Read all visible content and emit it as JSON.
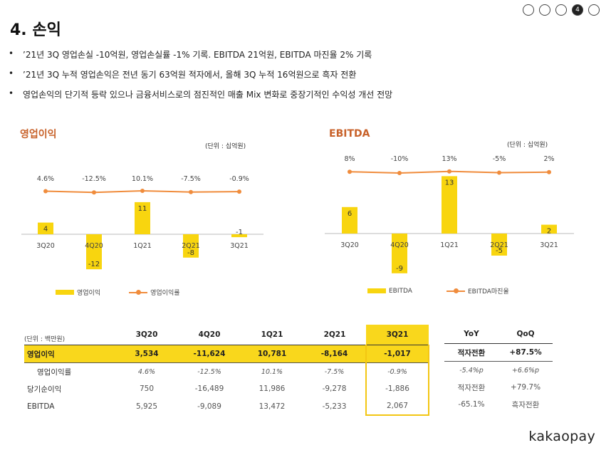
{
  "page": {
    "title": "4. 손익",
    "page_indicator": {
      "total": 5,
      "current": 4,
      "current_label": "4"
    }
  },
  "bullets": [
    "’21년 3Q 영업손실 -10억원, 영업손실률 -1% 기록. EBITDA 21억원, EBITDA 마진율 2% 기록",
    "’21년 3Q 누적 영업손익은 전년 동기 63억원 적자에서, 올해 3Q 누적 16억원으로 흑자 전환",
    "영업손익의 단기적 등락 있으나 금융서비스로의 점진적인 매출 Mix 변화로 중장기적인 수익성 개선 전망"
  ],
  "bullet_mark": "•",
  "colors": {
    "bar": "#f8d50f",
    "line": "#f08c3c",
    "title_left": "#c8622a",
    "title_right": "#c8622a",
    "highlight": "#f9d71c"
  },
  "chart_data": [
    {
      "type": "bar",
      "title": "영업이익",
      "unit": "(단위 : 십억원)",
      "categories": [
        "3Q20",
        "4Q20",
        "1Q21",
        "2Q21",
        "3Q21"
      ],
      "series": [
        {
          "name": "영업이익",
          "type": "bar",
          "values": [
            4,
            -12,
            11,
            -8,
            -1
          ],
          "labels": [
            "4",
            "-12",
            "11",
            "-8",
            "-1"
          ]
        },
        {
          "name": "영업이익률",
          "type": "line",
          "values": [
            4.6,
            -12.5,
            10.1,
            -7.5,
            -0.9
          ],
          "labels": [
            "4.6%",
            "-12.5%",
            "10.1%",
            "-7.5%",
            "-0.9%"
          ]
        }
      ]
    },
    {
      "type": "bar",
      "title": "EBITDA",
      "unit": "(단위 : 십억원)",
      "categories": [
        "3Q20",
        "4Q20",
        "1Q21",
        "2Q21",
        "3Q21"
      ],
      "series": [
        {
          "name": "EBITDA",
          "type": "bar",
          "values": [
            6,
            -9,
            13,
            -5,
            2
          ],
          "labels": [
            "6",
            "-9",
            "13",
            "-5",
            "2"
          ]
        },
        {
          "name": "EBITDA마진율",
          "type": "line",
          "values": [
            8,
            -10,
            13,
            -5,
            2
          ],
          "labels": [
            "8%",
            "-10%",
            "13%",
            "-5%",
            "2%"
          ]
        }
      ]
    }
  ],
  "table": {
    "unit": "(단위 : 백만원)",
    "headers": [
      "3Q20",
      "4Q20",
      "1Q21",
      "2Q21",
      "3Q21"
    ],
    "rows": [
      {
        "label": "영업이익",
        "values": [
          "3,534",
          "-11,624",
          "10,781",
          "-8,164",
          "-1,017"
        ]
      },
      {
        "label": "영업이익률",
        "values": [
          "4.6%",
          "-12.5%",
          "10.1%",
          "-7.5%",
          "-0.9%"
        ]
      },
      {
        "label": "당기순이익",
        "values": [
          "750",
          "-16,489",
          "11,986",
          "-9,278",
          "-1,886"
        ]
      },
      {
        "label": "EBITDA",
        "values": [
          "5,925",
          "-9,089",
          "13,472",
          "-5,233",
          "2,067"
        ]
      }
    ]
  },
  "table2": {
    "headers": [
      "YoY",
      "QoQ"
    ],
    "rows": [
      [
        "적자전환",
        "+87.5%"
      ],
      [
        "-5.4%p",
        "+6.6%p"
      ],
      [
        "적자전환",
        "+79.7%"
      ],
      [
        "-65.1%",
        "흑자전환"
      ]
    ]
  },
  "brand": "kakaopay"
}
